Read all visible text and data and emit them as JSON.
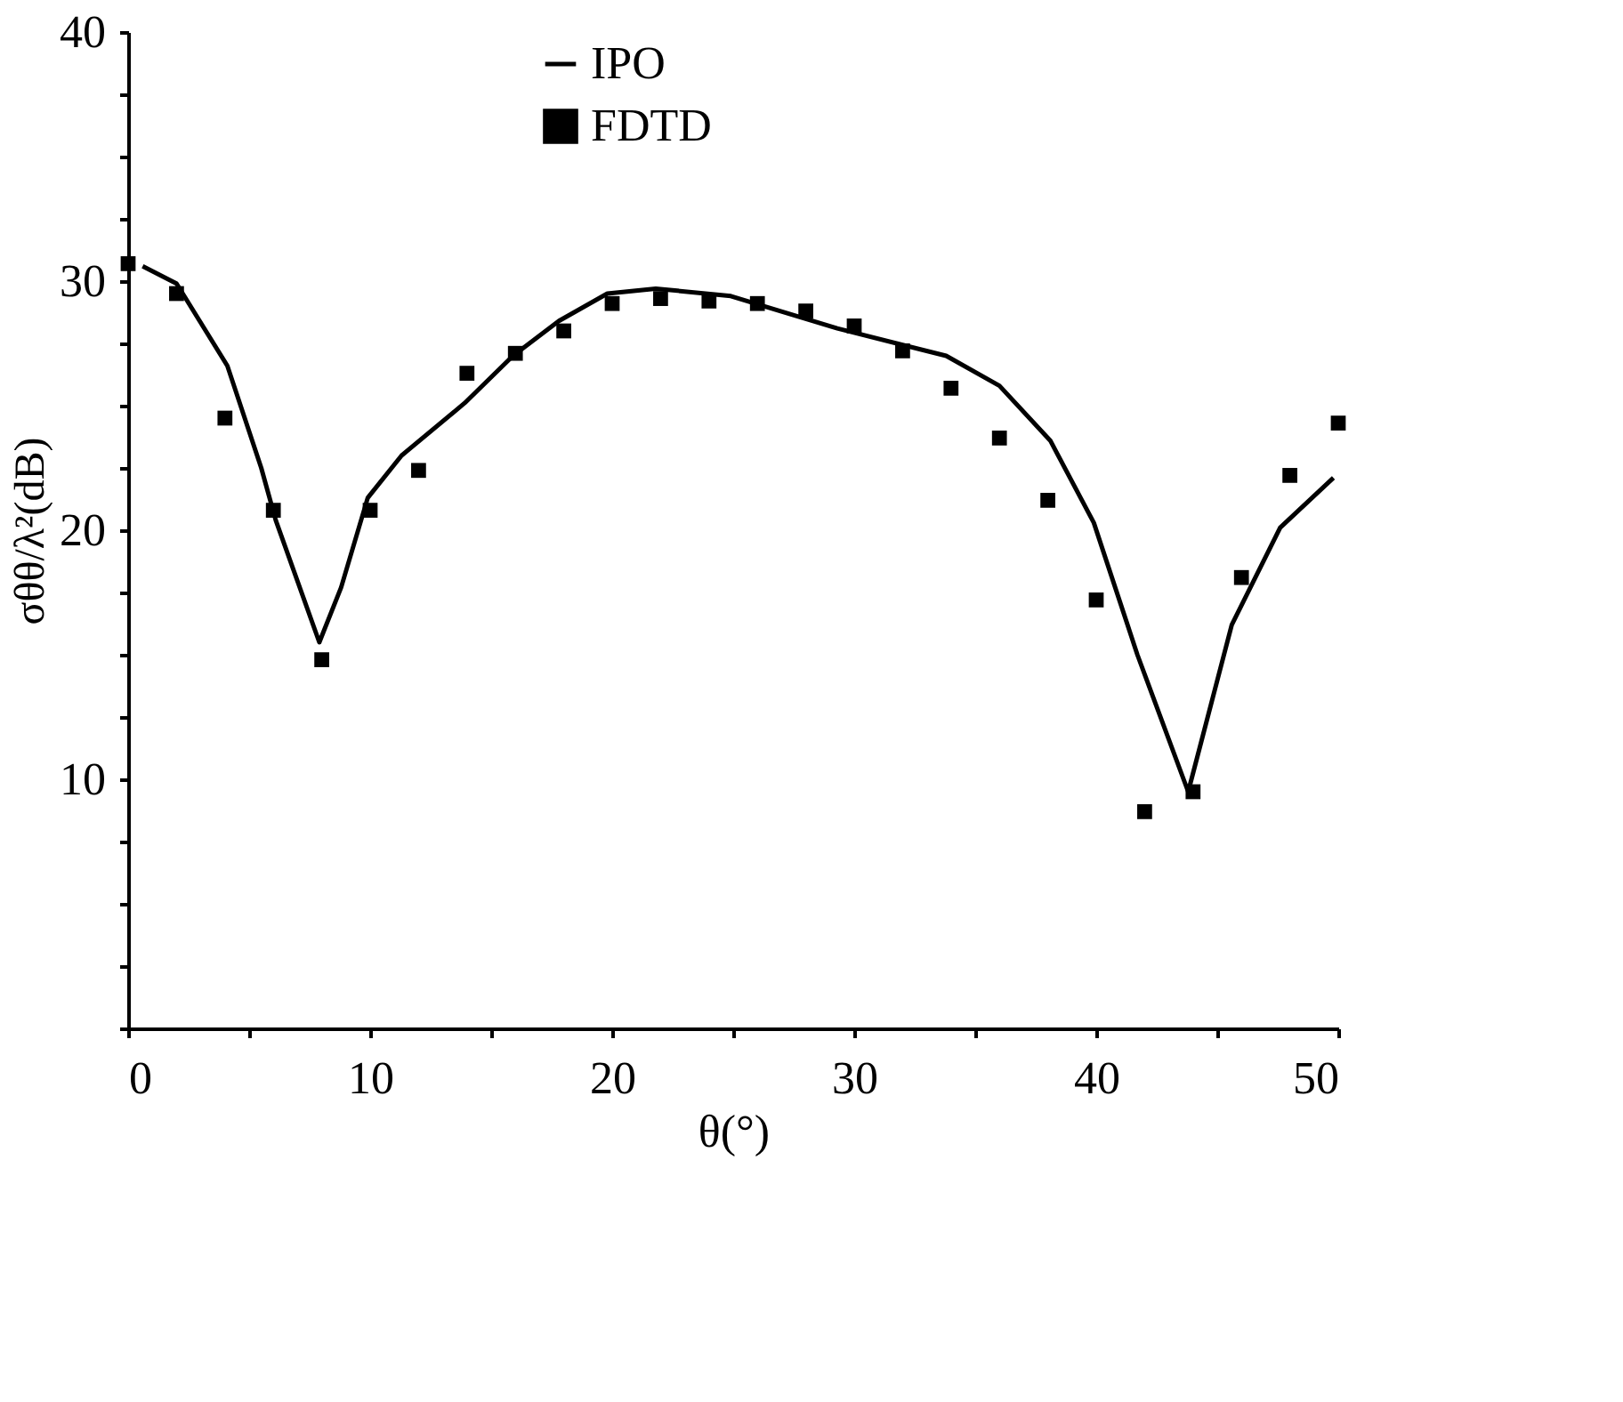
{
  "chart_data": {
    "type": "line",
    "xlabel": "θ(°)",
    "ylabel": "σθθ/λ²(dB)",
    "xlim": [
      0,
      50
    ],
    "ylim": [
      0,
      40
    ],
    "xticks": [
      0,
      {
        "value": 5,
        "label": null
      },
      10,
      {
        "value": 15,
        "label": null
      },
      20,
      {
        "value": 25,
        "label": null
      },
      30,
      {
        "value": 35,
        "label": null
      },
      40,
      {
        "value": 45,
        "label": null
      },
      50
    ],
    "yticks": [
      {
        "value": 0,
        "label": null
      },
      {
        "value": 2.5,
        "label": null
      },
      {
        "value": 5,
        "label": null
      },
      {
        "value": 7.5,
        "label": null
      },
      10,
      {
        "value": 12.5,
        "label": null
      },
      {
        "value": 15,
        "label": null
      },
      {
        "value": 17.5,
        "label": null
      },
      20,
      {
        "value": 22.5,
        "label": null
      },
      {
        "value": 25,
        "label": null
      },
      {
        "value": 27.5,
        "label": null
      },
      30,
      {
        "value": 32.5,
        "label": null
      },
      {
        "value": 35,
        "label": null
      },
      {
        "value": 37.5,
        "label": null
      },
      40
    ],
    "grid": false,
    "legend": "top",
    "line_style": "solid",
    "series": [
      {
        "name": "IPO",
        "type": "line",
        "color": "#000000",
        "x": [
          0.6,
          2,
          4.1,
          5.5,
          6.1,
          7.9,
          8.8,
          9.9,
          11.3,
          13.9,
          15.9,
          17.8,
          19.8,
          21.8,
          24.9,
          29.3,
          33.8,
          36,
          38.1,
          39.9,
          41.7,
          43.8,
          45.6,
          47.6,
          49.8
        ],
        "values": [
          30.6,
          29.9,
          26.6,
          22.5,
          20.4,
          15.5,
          17.7,
          21.3,
          23,
          25.1,
          27,
          28.4,
          29.5,
          29.7,
          29.4,
          28.1,
          27,
          25.8,
          23.6,
          20.3,
          15,
          9.5,
          16.2,
          20.1,
          22.1
        ]
      },
      {
        "name": "FDTD",
        "type": "scatter",
        "marker": "square",
        "color": "#000000",
        "x": [
          0,
          2,
          4,
          6,
          8,
          10,
          12,
          14,
          16,
          18,
          20,
          22,
          24,
          26,
          28,
          30,
          32,
          34,
          36,
          38,
          40,
          42,
          44,
          46,
          48,
          50
        ],
        "values": [
          30.7,
          29.5,
          24.5,
          20.8,
          14.8,
          20.8,
          22.4,
          26.3,
          27.1,
          28,
          29.1,
          29.3,
          29.2,
          29.1,
          28.8,
          28.2,
          27.2,
          25.7,
          23.7,
          21.2,
          17.2,
          8.7,
          9.5,
          18.1,
          22.2,
          24.3
        ]
      }
    ]
  }
}
